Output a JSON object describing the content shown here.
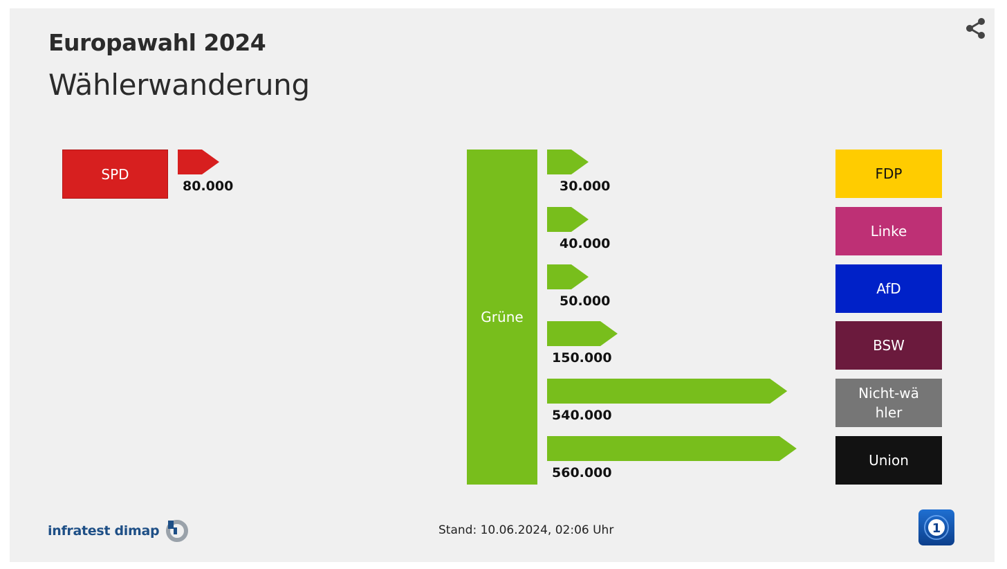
{
  "header": {
    "title": "Europawahl 2024",
    "subtitle": "Wählerwanderung"
  },
  "footer": {
    "brand": "infratest dimap",
    "stand": "Stand:  10.06.2024, 02:06 Uhr"
  },
  "icons": {
    "share": "share-icon",
    "broadcaster": "tagesschau-logo-icon",
    "brand_mark": "infratest-dimap-logo-icon"
  },
  "colors": {
    "Grüne": "#78be1c",
    "SPD": "#d71f1f",
    "FDP": "#ffcc00",
    "Linke": "#be3075",
    "AfD": "#0021c8",
    "BSW": "#6b1a3d",
    "Nichtwähler": "#767676",
    "Union": "#121212"
  },
  "chart_data": [
    {
      "type": "bar",
      "title": "",
      "source": "SPD",
      "target": "Grüne",
      "categories": [
        "SPD"
      ],
      "values": [
        80000
      ],
      "value_labels": [
        "80.000"
      ],
      "label": "SPD"
    },
    {
      "type": "bar",
      "title": "",
      "source": "Grüne",
      "categories": [
        "FDP",
        "Linke",
        "AfD",
        "BSW",
        "Nicht-wähler",
        "Union"
      ],
      "values": [
        30000,
        40000,
        50000,
        150000,
        540000,
        560000
      ],
      "value_labels": [
        "30.000",
        "40.000",
        "50.000",
        "150.000",
        "540.000",
        "560.000"
      ],
      "label": "Grüne"
    }
  ]
}
